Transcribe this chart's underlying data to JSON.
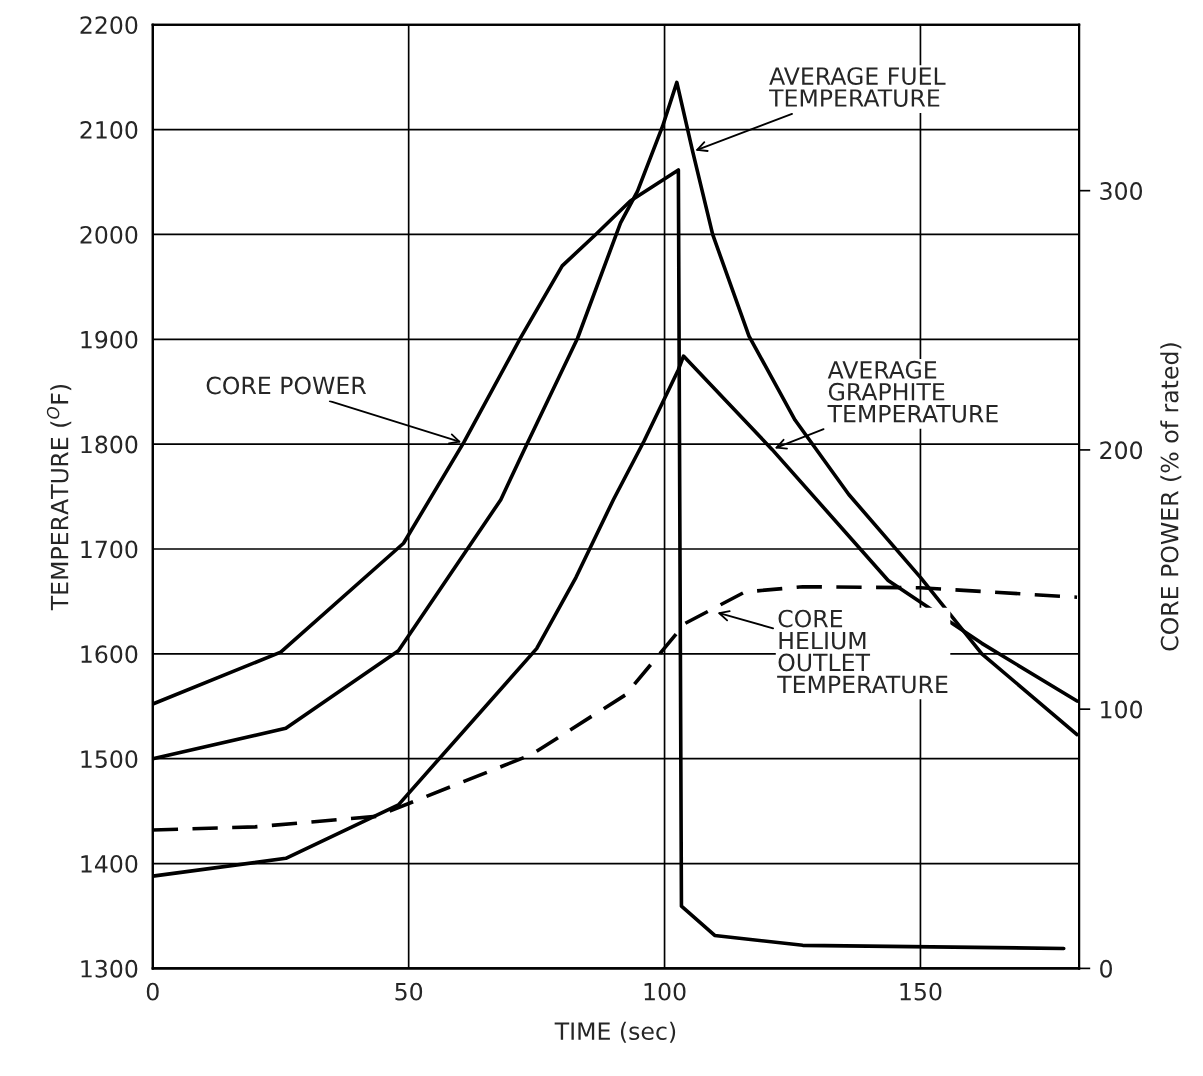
{
  "chart_data": {
    "type": "line",
    "xlabel": "TIME (sec)",
    "ylabel": "TEMPERATURE ($^{O}$F)",
    "y2label": "CORE POWER (% of rated)",
    "xlim": [
      0,
      181
    ],
    "xticks": [
      0,
      50,
      100,
      150
    ],
    "ylim": [
      1300,
      2200
    ],
    "yticks": [
      1300,
      1400,
      1500,
      1600,
      1700,
      1800,
      1900,
      2000,
      2100,
      2200
    ],
    "y2lim": [
      0,
      364
    ],
    "y2ticks": [
      0,
      100,
      200,
      300
    ],
    "grid": true,
    "legend": false,
    "series": [
      {
        "color": "#000000",
        "axis": "y2",
        "x": [
          0,
          25,
          49,
          60.8,
          71.8,
          80,
          86.5,
          93.3,
          102.7,
          103.3,
          109.8,
          127,
          178
        ],
        "values": [
          102,
          122,
          164,
          203,
          243,
          271,
          283,
          296,
          308,
          24,
          12.7,
          8.9,
          7.7
        ]
      },
      {
        "color": "#000000",
        "x": [
          0,
          26,
          48,
          68,
          73,
          83,
          91.4,
          94.7,
          99.6,
          102.4,
          105.5,
          109.4,
          116.5,
          125.5,
          136,
          150,
          162,
          180.6
        ],
        "values": [
          1500,
          1529,
          1603,
          1747,
          1799,
          1901,
          2011,
          2041,
          2103,
          2145,
          2079,
          2000,
          1903,
          1823,
          1752,
          1673,
          1600,
          1523
        ]
      },
      {
        "color": "#000000",
        "x": [
          0,
          26,
          48,
          75,
          82.7,
          90,
          96,
          102.7,
          103.7,
          121,
          143.7,
          162,
          180.6
        ],
        "values": [
          1388,
          1405,
          1456,
          1605,
          1673,
          1747,
          1803,
          1871,
          1884,
          1795,
          1670,
          1610,
          1555
        ]
      },
      {
        "color": "#000000",
        "line_style": "dashed",
        "x": [
          0,
          20,
          43.7,
          74,
          92.4,
          104,
          115.7,
          127,
          150,
          180.6
        ],
        "values": [
          1432,
          1435,
          1445,
          1504,
          1561,
          1629,
          1659,
          1664,
          1663,
          1654
        ]
      }
    ],
    "annotations": [
      {
        "text": "CORE POWER",
        "x": 60.8,
        "y": 1801
      },
      {
        "text": "AVERAGE FUEL\nTEMPERATURE",
        "x": 105.5,
        "y": 2079
      },
      {
        "text": "AVERAGE\nGRAPHITE\nTEMPERATURE",
        "x": 121,
        "y": 1795
      },
      {
        "text": "CORE\nHELIUM\nOUTLET\nTEMPERATURE",
        "x": 109.8,
        "y": 1640
      }
    ]
  }
}
